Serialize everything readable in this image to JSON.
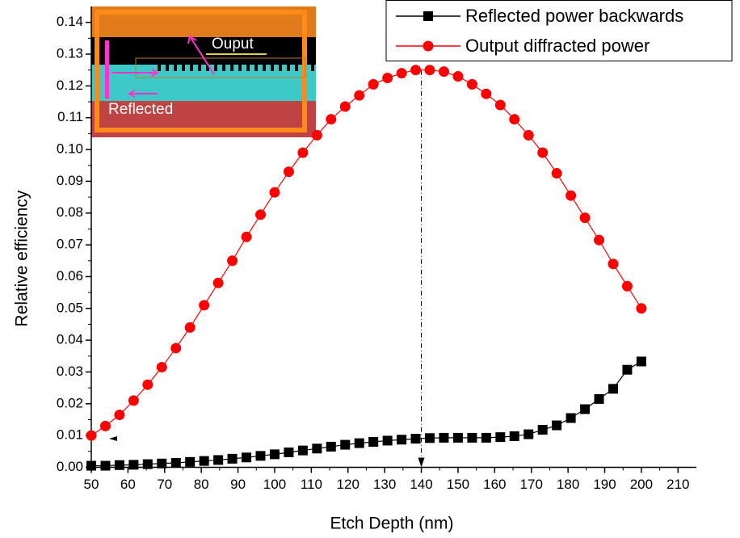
{
  "chart_data": {
    "type": "line",
    "x_label": "Etch Depth (nm)",
    "y_label": "Relative efficiency",
    "x": [
      50,
      53.85,
      57.69,
      61.54,
      65.38,
      69.23,
      73.08,
      76.92,
      80.77,
      84.62,
      88.46,
      92.31,
      96.15,
      100,
      103.85,
      107.69,
      111.54,
      115.38,
      119.23,
      123.08,
      126.92,
      130.77,
      134.62,
      138.46,
      142.31,
      146.15,
      150,
      153.85,
      157.69,
      161.54,
      165.38,
      169.23,
      173.08,
      176.92,
      180.77,
      184.62,
      188.46,
      192.31,
      196.15,
      200
    ],
    "series": [
      {
        "name": "Reflected power backwards",
        "color": "#000000",
        "marker": "square",
        "values": [
          0.0005,
          0.0005,
          0.0007,
          0.0008,
          0.001,
          0.0012,
          0.0014,
          0.0017,
          0.002,
          0.0023,
          0.0027,
          0.0031,
          0.0036,
          0.0041,
          0.0047,
          0.0053,
          0.0059,
          0.0065,
          0.0071,
          0.0076,
          0.008,
          0.0084,
          0.0087,
          0.009,
          0.0092,
          0.0093,
          0.0093,
          0.0093,
          0.0093,
          0.0095,
          0.0098,
          0.0104,
          0.0118,
          0.0132,
          0.0155,
          0.0183,
          0.0215,
          0.0247,
          0.0307,
          0.0333
        ]
      },
      {
        "name": "Output diffracted power",
        "color": "#ff0000",
        "marker": "circle",
        "values": [
          0.01,
          0.013,
          0.0165,
          0.021,
          0.026,
          0.0315,
          0.0375,
          0.044,
          0.051,
          0.058,
          0.065,
          0.0725,
          0.0795,
          0.0865,
          0.093,
          0.099,
          0.1045,
          0.1095,
          0.1135,
          0.117,
          0.1205,
          0.1225,
          0.124,
          0.125,
          0.125,
          0.1245,
          0.123,
          0.1205,
          0.1175,
          0.114,
          0.1095,
          0.1045,
          0.099,
          0.0925,
          0.0855,
          0.0785,
          0.0715,
          0.064,
          0.057,
          0.05
        ]
      }
    ],
    "xlim": [
      50,
      215
    ],
    "ylim": [
      0,
      0.145
    ],
    "xticks": [
      50,
      60,
      70,
      80,
      90,
      100,
      110,
      120,
      130,
      140,
      150,
      160,
      170,
      180,
      190,
      200,
      210
    ],
    "yticks": [
      {
        "value": 0,
        "label": "0.00"
      },
      {
        "value": 0.01,
        "label": "0.01"
      },
      {
        "value": 0.02,
        "label": "0.02"
      },
      {
        "value": 0.03,
        "label": "0.03"
      },
      {
        "value": 0.04,
        "label": "0.04"
      },
      {
        "value": 0.05,
        "label": "0.05"
      },
      {
        "value": 0.06,
        "label": "0.06"
      },
      {
        "value": 0.07,
        "label": "0.07"
      },
      {
        "value": 0.08,
        "label": "0.08"
      },
      {
        "value": 0.09,
        "label": "0.09"
      },
      {
        "value": 0.1,
        "label": "0.10"
      },
      {
        "value": 0.11,
        "label": "0.11"
      },
      {
        "value": 0.12,
        "label": "0.12"
      },
      {
        "value": 0.13,
        "label": "0.13"
      },
      {
        "value": 0.14,
        "label": "0.14"
      }
    ],
    "grid": false,
    "legend": "upper right",
    "peak_marker": {
      "x": 140,
      "y": 0.125
    },
    "inset": {
      "labels": [
        "Ouput",
        "Reflected"
      ]
    }
  }
}
